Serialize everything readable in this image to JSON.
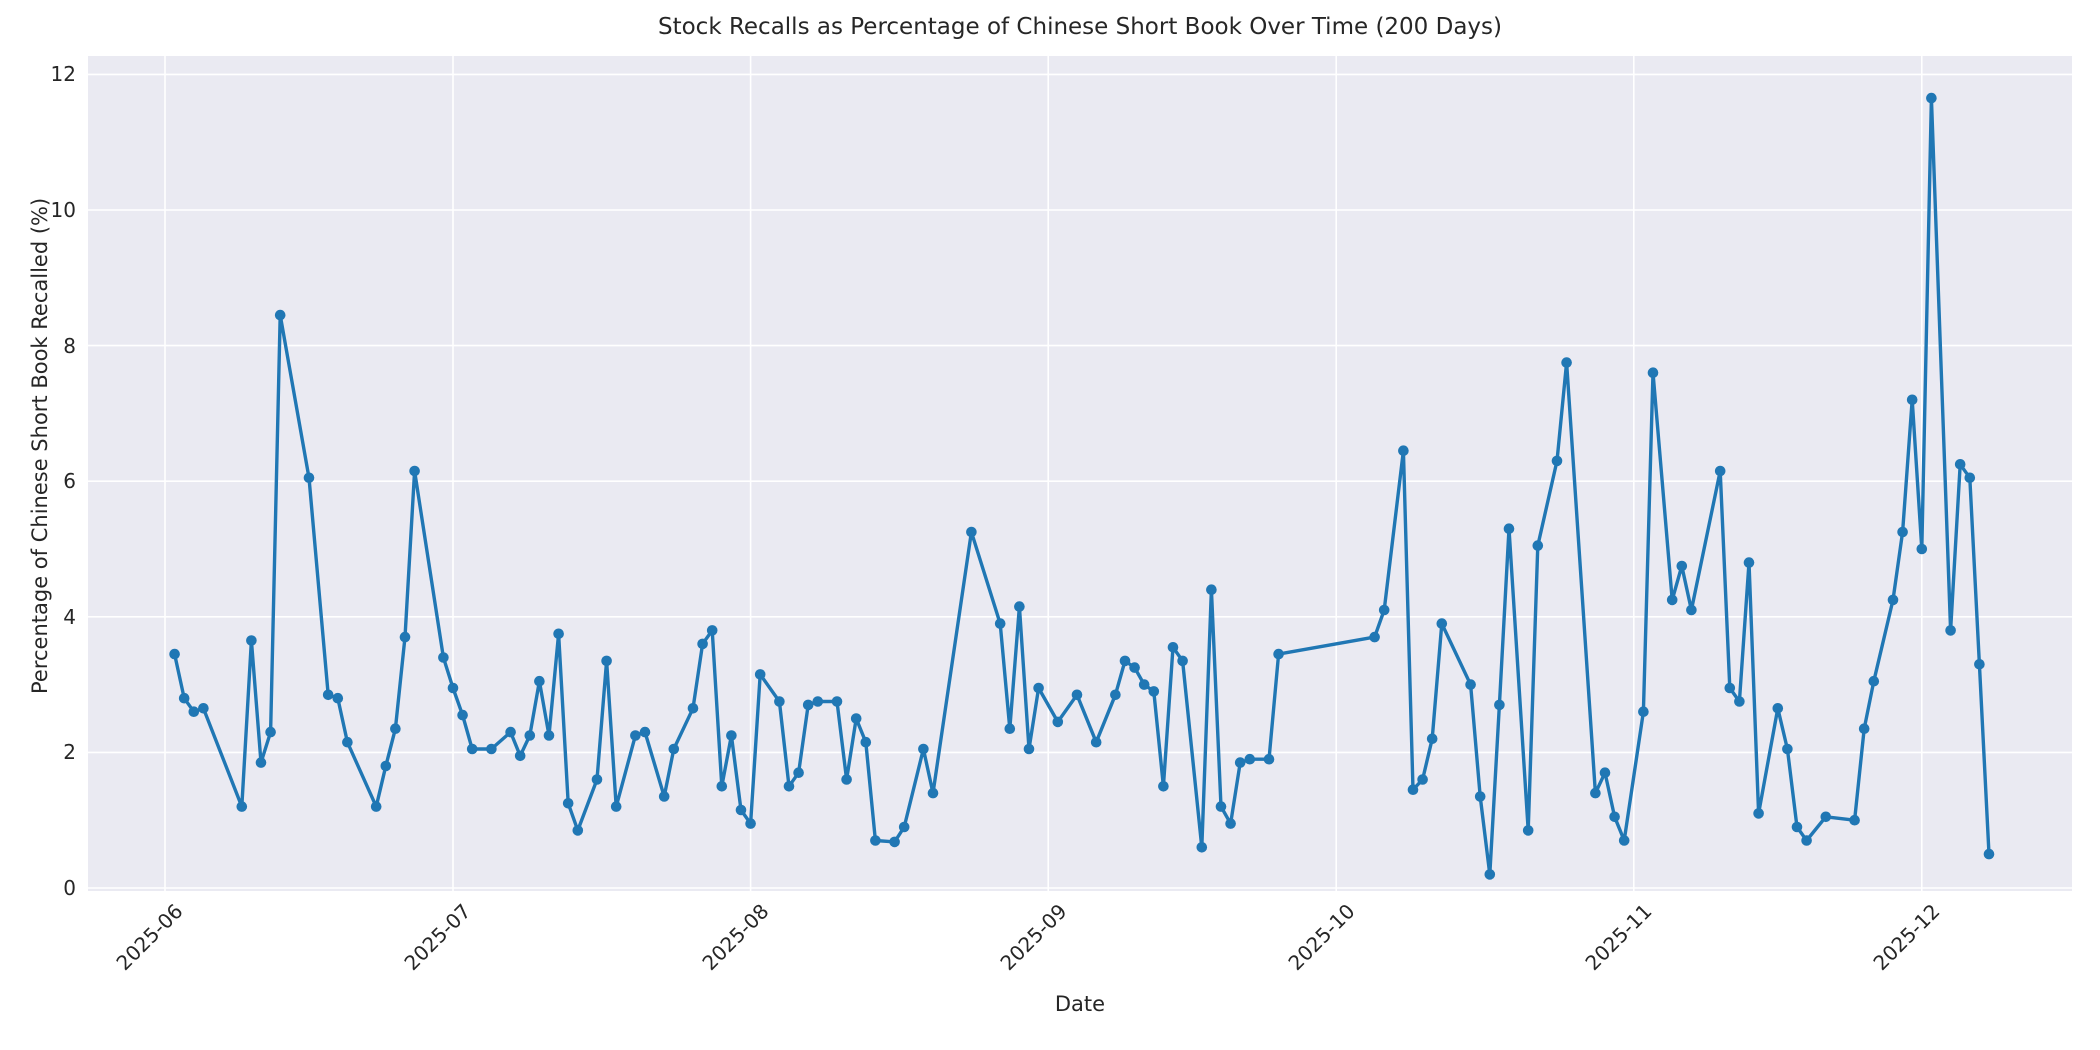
{
  "chart_data": {
    "type": "line",
    "title": "Stock Recalls as Percentage of Chinese Short Book Over Time (200 Days)",
    "xlabel": "Date",
    "ylabel": "Percentage of Chinese Short Book Recalled (%)",
    "grid": true,
    "legend": false,
    "plot_bg_color": "#eaeaf2",
    "grid_color": "#ffffff",
    "line_color": "#2077b4",
    "text_color": "#262626",
    "y_ticks": [
      0,
      2,
      4,
      6,
      8,
      10,
      12
    ],
    "ylim": [
      -0.05,
      12.25
    ],
    "x_tick_labels": [
      "2025-06",
      "2025-07",
      "2025-08",
      "2025-09",
      "2025-10",
      "2025-11",
      "2025-12"
    ],
    "x_tick_dates": [
      "2025-06-01",
      "2025-07-01",
      "2025-08-01",
      "2025-09-01",
      "2025-10-01",
      "2025-11-01",
      "2025-12-01"
    ],
    "xlim": [
      "2025-05-24",
      "2025-12-17"
    ],
    "series": [
      {
        "name": "recall_percentage",
        "x": [
          "2025-06-02",
          "2025-06-03",
          "2025-06-04",
          "2025-06-05",
          "2025-06-09",
          "2025-06-10",
          "2025-06-11",
          "2025-06-12",
          "2025-06-13",
          "2025-06-16",
          "2025-06-18",
          "2025-06-19",
          "2025-06-20",
          "2025-06-23",
          "2025-06-24",
          "2025-06-25",
          "2025-06-26",
          "2025-06-27",
          "2025-06-30",
          "2025-07-01",
          "2025-07-02",
          "2025-07-03",
          "2025-07-05",
          "2025-07-07",
          "2025-07-08",
          "2025-07-09",
          "2025-07-10",
          "2025-07-11",
          "2025-07-12",
          "2025-07-13",
          "2025-07-14",
          "2025-07-16",
          "2025-07-17",
          "2025-07-18",
          "2025-07-20",
          "2025-07-21",
          "2025-07-23",
          "2025-07-24",
          "2025-07-26",
          "2025-07-27",
          "2025-07-28",
          "2025-07-29",
          "2025-07-30",
          "2025-07-31",
          "2025-08-01",
          "2025-08-02",
          "2025-08-04",
          "2025-08-05",
          "2025-08-06",
          "2025-08-07",
          "2025-08-08",
          "2025-08-10",
          "2025-08-11",
          "2025-08-12",
          "2025-08-13",
          "2025-08-14",
          "2025-08-16",
          "2025-08-17",
          "2025-08-19",
          "2025-08-20",
          "2025-08-24",
          "2025-08-27",
          "2025-08-28",
          "2025-08-29",
          "2025-08-30",
          "2025-08-31",
          "2025-09-02",
          "2025-09-04",
          "2025-09-06",
          "2025-09-08",
          "2025-09-09",
          "2025-09-10",
          "2025-09-11",
          "2025-09-12",
          "2025-09-13",
          "2025-09-14",
          "2025-09-15",
          "2025-09-17",
          "2025-09-18",
          "2025-09-19",
          "2025-09-20",
          "2025-09-21",
          "2025-09-22",
          "2025-09-24",
          "2025-09-25",
          "2025-10-05",
          "2025-10-06",
          "2025-10-08",
          "2025-10-09",
          "2025-10-10",
          "2025-10-11",
          "2025-10-12",
          "2025-10-15",
          "2025-10-16",
          "2025-10-17",
          "2025-10-18",
          "2025-10-19",
          "2025-10-21",
          "2025-10-22",
          "2025-10-24",
          "2025-10-25",
          "2025-10-28",
          "2025-10-29",
          "2025-10-30",
          "2025-10-31",
          "2025-11-02",
          "2025-11-03",
          "2025-11-05",
          "2025-11-06",
          "2025-11-07",
          "2025-11-10",
          "2025-11-11",
          "2025-11-12",
          "2025-11-13",
          "2025-11-14",
          "2025-11-16",
          "2025-11-17",
          "2025-11-18",
          "2025-11-19",
          "2025-11-21",
          "2025-11-24",
          "2025-11-25",
          "2025-11-26",
          "2025-11-28",
          "2025-11-29",
          "2025-11-30",
          "2025-12-01",
          "2025-12-02",
          "2025-12-04",
          "2025-12-05",
          "2025-12-06",
          "2025-12-07",
          "2025-12-08"
        ],
        "y": [
          3.45,
          2.8,
          2.6,
          2.65,
          1.2,
          3.65,
          1.85,
          2.3,
          8.45,
          6.05,
          2.85,
          2.8,
          2.15,
          1.2,
          1.8,
          2.35,
          3.7,
          6.15,
          3.4,
          2.95,
          2.55,
          2.05,
          2.05,
          2.3,
          1.95,
          2.25,
          3.05,
          2.25,
          3.75,
          1.25,
          0.85,
          1.6,
          3.35,
          1.2,
          2.25,
          2.3,
          1.35,
          2.05,
          2.65,
          3.6,
          3.8,
          1.5,
          2.25,
          1.15,
          0.95,
          3.15,
          2.75,
          1.5,
          1.7,
          2.7,
          2.75,
          2.75,
          1.6,
          2.5,
          2.15,
          0.7,
          0.68,
          0.9,
          2.05,
          1.4,
          5.25,
          3.9,
          2.35,
          4.15,
          2.05,
          2.95,
          2.45,
          2.85,
          2.15,
          2.85,
          3.35,
          3.25,
          3.0,
          2.9,
          1.5,
          3.55,
          3.35,
          0.6,
          4.4,
          1.2,
          0.95,
          1.85,
          1.9,
          1.9,
          3.45,
          3.7,
          4.1,
          6.45,
          1.45,
          1.6,
          2.2,
          3.9,
          3.0,
          1.35,
          0.2,
          2.7,
          5.3,
          0.85,
          5.05,
          6.3,
          7.75,
          1.4,
          1.7,
          1.05,
          0.7,
          2.6,
          7.6,
          4.25,
          4.75,
          4.1,
          6.15,
          2.95,
          2.75,
          4.8,
          1.1,
          2.65,
          2.05,
          0.9,
          0.7,
          1.05,
          1.0,
          2.35,
          3.05,
          4.25,
          5.25,
          7.2,
          5.0,
          11.65,
          3.8,
          6.25,
          6.05,
          3.3,
          0.5
        ]
      }
    ]
  }
}
